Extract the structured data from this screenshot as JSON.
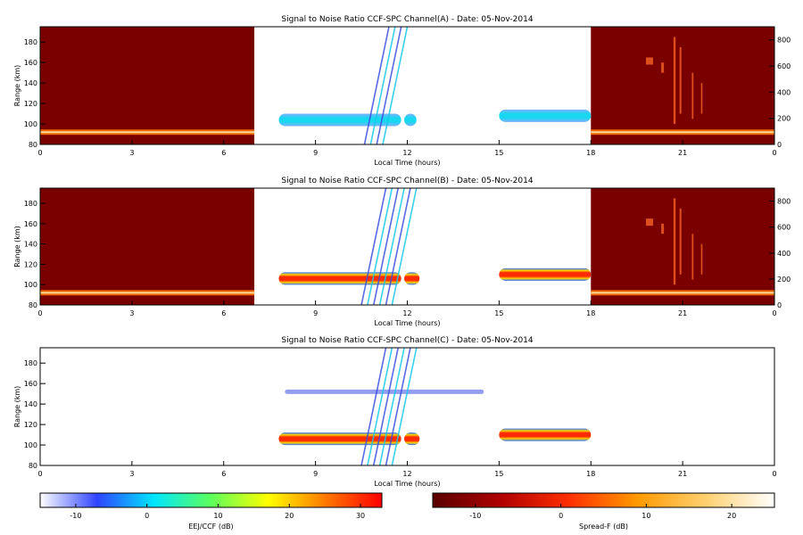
{
  "colors": {
    "night_bg": "#7a0000",
    "panel_frame": "#000000",
    "echo_weak": "#3a4fe0",
    "echo_mid": "#16c8e8",
    "echo_strong": "#e81800",
    "spreadf_line": "#ffd89a"
  },
  "chart_data": [
    {
      "type": "heatmap",
      "title": "Signal to Noise Ratio CCF-SPC Channel(A) - Date: 05-Nov-2014",
      "xlabel": "Local Time (hours)",
      "ylabel": "Range (km)",
      "xlim": [
        0,
        24
      ],
      "ylim": [
        80,
        195
      ],
      "xticks": [
        "0",
        "3",
        "6",
        "9",
        "12",
        "15",
        "18",
        "21",
        "0"
      ],
      "yticks": [
        "80",
        "100",
        "120",
        "140",
        "160",
        "180"
      ],
      "right_ylim": [
        0,
        900
      ],
      "right_yticks": [
        "0",
        "200",
        "400",
        "600",
        "800"
      ],
      "daytime_window": [
        7,
        18
      ],
      "night_segments": [
        [
          0,
          7
        ],
        [
          18,
          24
        ]
      ],
      "night_layer_range_km": 92,
      "echo_regions": [
        {
          "t_start": 7.8,
          "t_end": 11.8,
          "range_km": 104,
          "intensity": "mid"
        },
        {
          "t_start": 11.9,
          "t_end": 12.3,
          "range_km": 104,
          "intensity": "mid"
        },
        {
          "t_start": 15.0,
          "t_end": 18.0,
          "range_km": 108,
          "intensity": "mid"
        }
      ]
    },
    {
      "type": "heatmap",
      "title": "Signal to Noise Ratio CCF-SPC Channel(B) - Date: 05-Nov-2014",
      "xlabel": "Local Time (hours)",
      "ylabel": "Range (km)",
      "xlim": [
        0,
        24
      ],
      "ylim": [
        80,
        195
      ],
      "xticks": [
        "0",
        "3",
        "6",
        "9",
        "12",
        "15",
        "18",
        "21",
        "0"
      ],
      "yticks": [
        "80",
        "100",
        "120",
        "140",
        "160",
        "180"
      ],
      "right_ylim": [
        0,
        900
      ],
      "right_yticks": [
        "0",
        "200",
        "400",
        "600",
        "800"
      ],
      "daytime_window": [
        7,
        18
      ],
      "night_segments": [
        [
          0,
          7
        ],
        [
          18,
          24
        ]
      ],
      "night_layer_range_km": 92,
      "echo_regions": [
        {
          "t_start": 7.8,
          "t_end": 11.8,
          "range_km": 106,
          "intensity": "strong"
        },
        {
          "t_start": 11.9,
          "t_end": 12.4,
          "range_km": 106,
          "intensity": "strong"
        },
        {
          "t_start": 15.0,
          "t_end": 18.0,
          "range_km": 110,
          "intensity": "strong"
        }
      ]
    },
    {
      "type": "heatmap",
      "title": "Signal to Noise Ratio CCF-SPC Channel(C) - Date: 05-Nov-2014",
      "xlabel": "Local Time (hours)",
      "ylabel": "Range (km)",
      "xlim": [
        0,
        24
      ],
      "ylim": [
        80,
        195
      ],
      "xticks": [
        "0",
        "3",
        "6",
        "9",
        "12",
        "15",
        "18",
        "21",
        "0"
      ],
      "yticks": [
        "80",
        "100",
        "120",
        "140",
        "160",
        "180"
      ],
      "echo_regions": [
        {
          "t_start": 7.8,
          "t_end": 11.8,
          "range_km": 106,
          "intensity": "strong"
        },
        {
          "t_start": 11.9,
          "t_end": 12.4,
          "range_km": 106,
          "intensity": "strong"
        },
        {
          "t_start": 15.0,
          "t_end": 18.0,
          "range_km": 110,
          "intensity": "strong"
        },
        {
          "t_start": 8.0,
          "t_end": 14.5,
          "range_km": 152,
          "intensity": "weak"
        }
      ]
    }
  ],
  "colorbars": [
    {
      "label": "EEJ/CCF (dB)",
      "range": [
        -15,
        33
      ],
      "ticks": [
        "-10",
        "0",
        "10",
        "20",
        "30"
      ],
      "tick_values": [
        -10,
        0,
        10,
        20,
        30
      ],
      "stops": [
        "#ffffff",
        "#2f44ff",
        "#00e6ff",
        "#5cff5c",
        "#ffff00",
        "#ff7a00",
        "#ff0000"
      ]
    },
    {
      "label": "Spread-F (dB)",
      "range": [
        -15,
        25
      ],
      "ticks": [
        "-10",
        "0",
        "10",
        "20"
      ],
      "tick_values": [
        -10,
        0,
        10,
        20
      ],
      "stops": [
        "#5a0000",
        "#b00000",
        "#ff3000",
        "#ff9a00",
        "#ffd070",
        "#ffffff"
      ]
    }
  ]
}
